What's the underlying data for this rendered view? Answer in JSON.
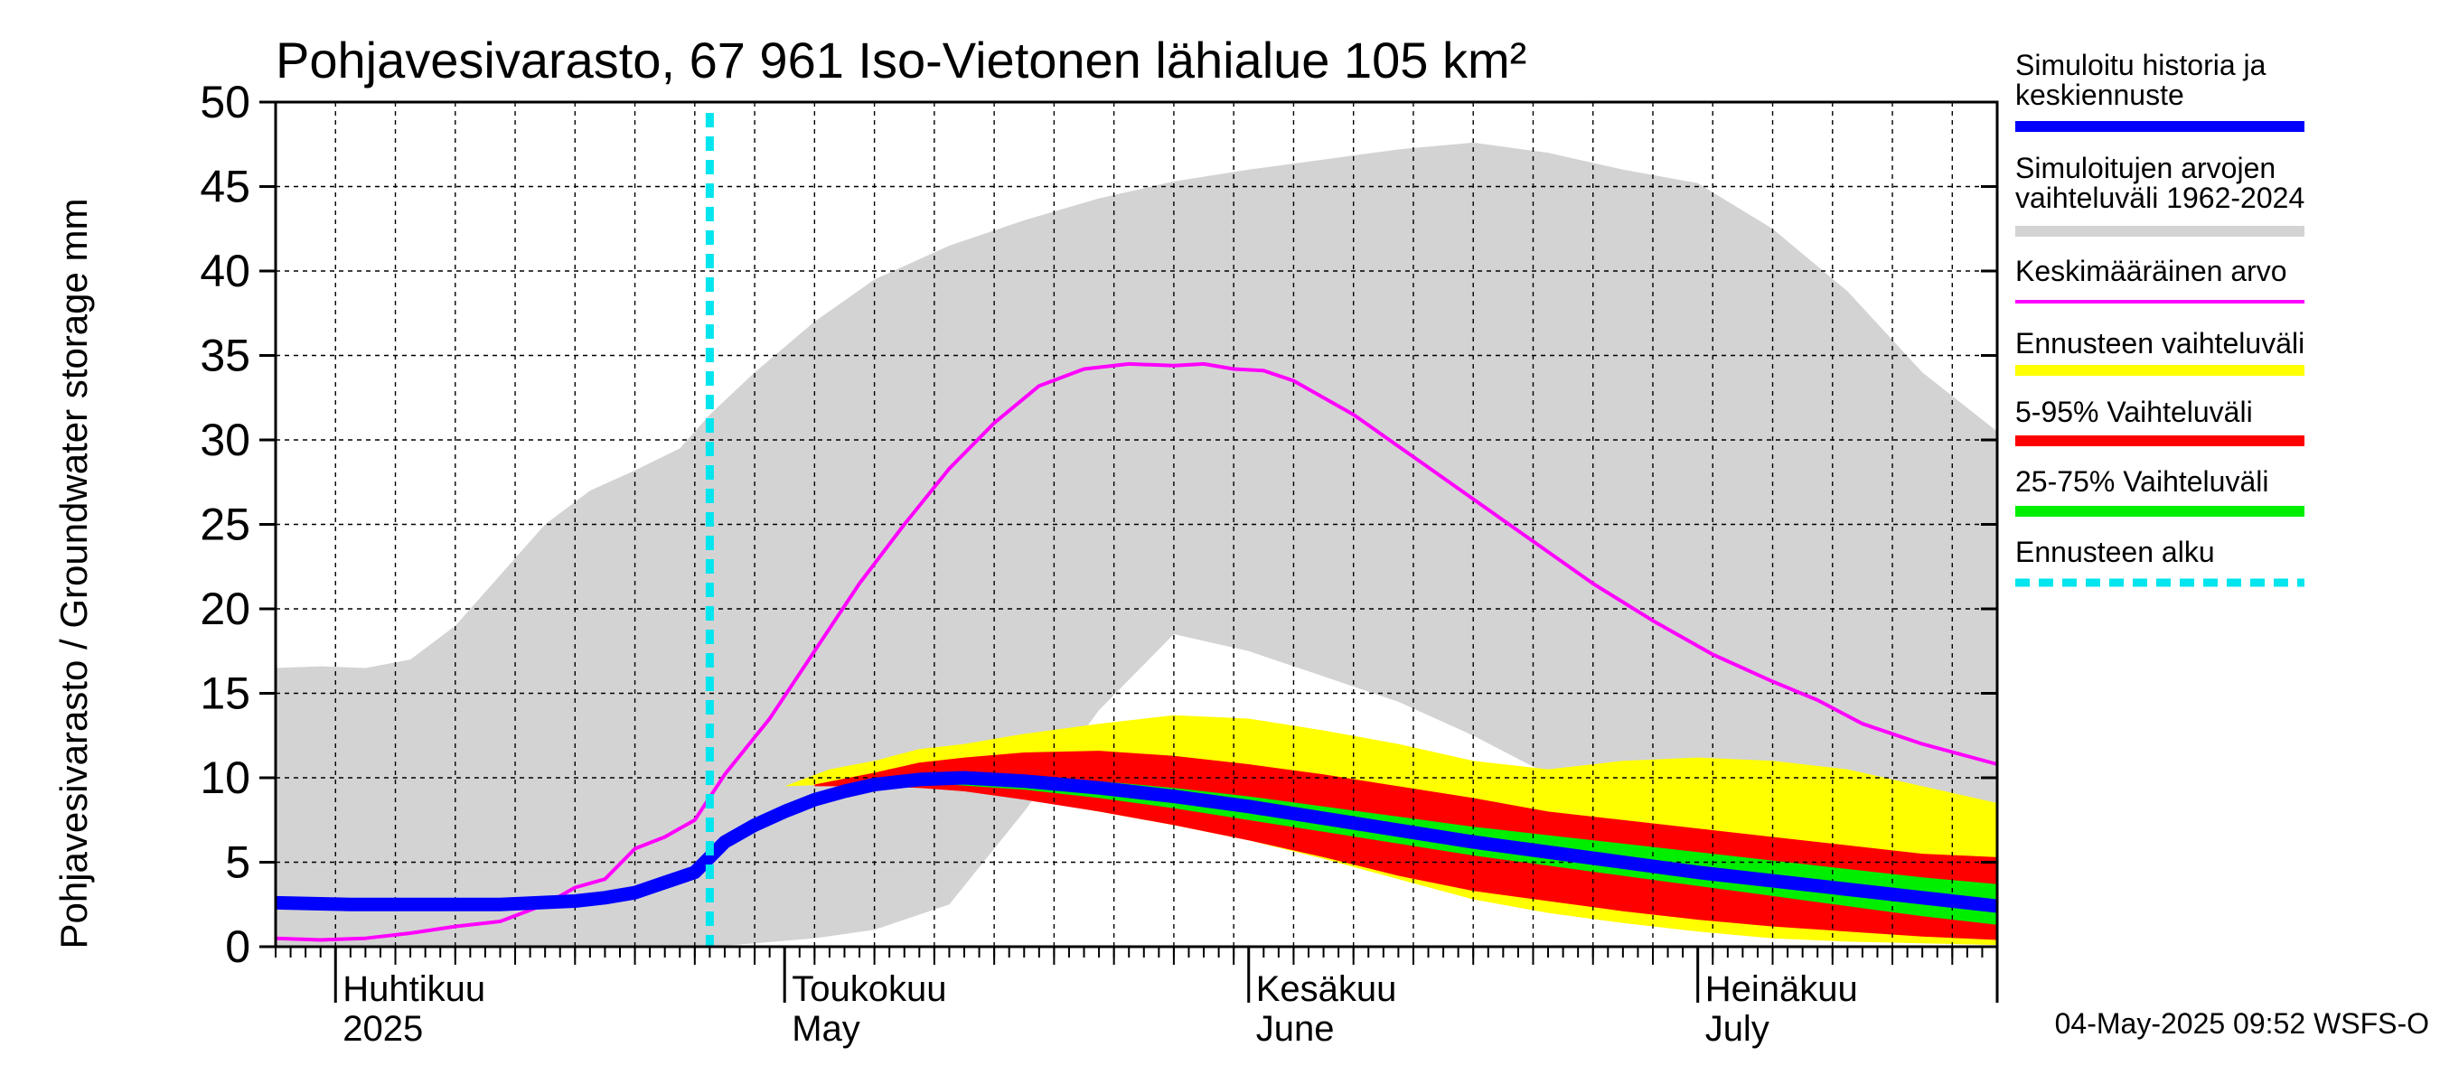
{
  "chart_data": {
    "type": "area",
    "title": "Pohjavesivarasto, 67 961 Iso-Vietonen lähialue 105 km²",
    "ylabel": "Pohjavesivarasto / Groundwater storage   mm",
    "xlabel": "",
    "ylim": [
      0,
      50
    ],
    "xlim": [
      0,
      115
    ],
    "x_origin": "2025-03-28",
    "grid": true,
    "y_ticks": [
      "0",
      "5",
      "10",
      "15",
      "20",
      "25",
      "30",
      "35",
      "40",
      "45",
      "50"
    ],
    "month_labels": [
      {
        "day": 4,
        "line1": "Huhtikuu",
        "line2": "2025"
      },
      {
        "day": 34,
        "line1": "Toukokuu",
        "line2": "May"
      },
      {
        "day": 65,
        "line1": "Kesäkuu",
        "line2": "June"
      },
      {
        "day": 95,
        "line1": "Heinäkuu",
        "line2": "July"
      }
    ],
    "month_boundaries": [
      4,
      34,
      65,
      95
    ],
    "forecast_start_day": 29,
    "series": [
      {
        "name": "Simuloitujen arvojen vaihteluväli 1962-2024",
        "kind": "band",
        "color": "#d3d3d3",
        "x": [
          0,
          3,
          6,
          9,
          12,
          15,
          18,
          21,
          24,
          27,
          29,
          32,
          36,
          40,
          45,
          50,
          55,
          60,
          65,
          70,
          75,
          80,
          85,
          90,
          95,
          100,
          105,
          110,
          115
        ],
        "upper": [
          16.5,
          16.6,
          16.5,
          17.0,
          19.0,
          22.0,
          25.0,
          27.0,
          28.2,
          29.5,
          31.5,
          34.0,
          37.0,
          39.5,
          41.5,
          43.0,
          44.3,
          45.3,
          46.0,
          46.6,
          47.2,
          47.6,
          47.0,
          46.0,
          45.2,
          42.5,
          38.8,
          34.0,
          30.5
        ],
        "lower": [
          0,
          0,
          0,
          0,
          0,
          0,
          0,
          0,
          0,
          0,
          0,
          0.2,
          0.5,
          1.0,
          2.5,
          8.0,
          14.0,
          18.5,
          17.5,
          16.0,
          14.5,
          12.5,
          10.2,
          8.3,
          6.8,
          5.8,
          4.9,
          4.0,
          3.5
        ]
      },
      {
        "name": "Ennusteen vaihteluväli",
        "kind": "band",
        "color": "#ffff00",
        "x": [
          34,
          37,
          40,
          43,
          46,
          50,
          55,
          60,
          65,
          70,
          75,
          80,
          85,
          90,
          95,
          100,
          105,
          110,
          115
        ],
        "upper": [
          9.5,
          10.5,
          11.0,
          11.7,
          12.0,
          12.6,
          13.2,
          13.7,
          13.5,
          12.8,
          12.0,
          11.0,
          10.5,
          11.0,
          11.2,
          11.0,
          10.5,
          9.5,
          8.5
        ],
        "lower": [
          9.5,
          9.6,
          9.7,
          9.5,
          9.3,
          8.8,
          8.0,
          7.2,
          6.3,
          5.2,
          4.0,
          2.8,
          2.0,
          1.4,
          0.9,
          0.5,
          0.3,
          0.2,
          0.1
        ]
      },
      {
        "name": "5-95% Vaihteluväli",
        "kind": "band",
        "color": "#ff0000",
        "x": [
          36,
          40,
          43,
          46,
          50,
          55,
          60,
          65,
          70,
          75,
          80,
          85,
          90,
          95,
          100,
          105,
          110,
          115
        ],
        "upper": [
          9.6,
          10.3,
          10.9,
          11.2,
          11.5,
          11.6,
          11.3,
          10.8,
          10.2,
          9.5,
          8.8,
          8.0,
          7.5,
          7.0,
          6.5,
          6.0,
          5.5,
          5.3
        ],
        "lower": [
          9.5,
          9.5,
          9.4,
          9.2,
          8.7,
          8.0,
          7.2,
          6.3,
          5.3,
          4.2,
          3.3,
          2.7,
          2.1,
          1.6,
          1.2,
          0.9,
          0.6,
          0.4
        ]
      },
      {
        "name": "25-75% Vaihteluväli",
        "kind": "band",
        "color": "#00ee00",
        "x": [
          40,
          45,
          50,
          55,
          60,
          65,
          70,
          75,
          80,
          85,
          90,
          95,
          100,
          105,
          110,
          115
        ],
        "upper": [
          10.0,
          10.1,
          10.1,
          9.8,
          9.4,
          8.9,
          8.3,
          7.7,
          7.1,
          6.6,
          6.1,
          5.6,
          5.1,
          4.6,
          4.1,
          3.7
        ],
        "lower": [
          9.8,
          9.6,
          9.3,
          8.8,
          8.2,
          7.5,
          6.8,
          6.1,
          5.4,
          4.8,
          4.2,
          3.6,
          3.0,
          2.4,
          1.8,
          1.3
        ]
      },
      {
        "name": "Keskimääräinen arvo",
        "kind": "line",
        "color": "#ff00ff",
        "x": [
          0,
          3,
          6,
          9,
          12,
          15,
          18,
          20,
          22,
          24,
          26,
          28,
          30,
          33,
          36,
          39,
          42,
          45,
          48,
          51,
          54,
          57,
          60,
          62,
          64,
          66,
          68,
          70,
          72,
          76,
          80,
          84,
          88,
          92,
          96,
          100,
          103,
          106,
          110,
          115
        ],
        "y": [
          0.5,
          0.4,
          0.5,
          0.8,
          1.2,
          1.5,
          2.5,
          3.5,
          4.0,
          5.8,
          6.5,
          7.5,
          10.2,
          13.5,
          17.5,
          21.5,
          25.0,
          28.3,
          31.0,
          33.2,
          34.2,
          34.5,
          34.4,
          34.5,
          34.2,
          34.1,
          33.5,
          32.5,
          31.5,
          29.0,
          26.5,
          24.0,
          21.5,
          19.3,
          17.3,
          15.7,
          14.6,
          13.2,
          12.0,
          10.8
        ]
      },
      {
        "name": "Simuloitu historia ja keskiennuste",
        "kind": "line",
        "color": "#0000ff",
        "x": [
          0,
          5,
          10,
          15,
          20,
          22,
          24,
          26,
          28,
          30,
          32,
          34,
          36,
          38,
          40,
          43,
          46,
          50,
          55,
          60,
          65,
          70,
          75,
          80,
          85,
          90,
          95,
          100,
          105,
          110,
          115
        ],
        "y": [
          2.6,
          2.5,
          2.5,
          2.5,
          2.7,
          2.9,
          3.2,
          3.8,
          4.4,
          6.2,
          7.2,
          8.0,
          8.7,
          9.2,
          9.6,
          9.9,
          10.0,
          9.8,
          9.4,
          8.9,
          8.3,
          7.6,
          6.9,
          6.2,
          5.6,
          5.0,
          4.4,
          3.9,
          3.4,
          2.9,
          2.4
        ]
      },
      {
        "name": "Ennusteen alku",
        "kind": "vline",
        "color": "#00e5ee",
        "x": 29
      }
    ]
  },
  "legend": [
    {
      "line1": "Simuloitu historia ja",
      "line2": "keskiennuste",
      "color": "#0000ff",
      "style": "thick"
    },
    {
      "line1": "Simuloitujen arvojen",
      "line2": "vaihteluväli 1962-2024",
      "color": "#d3d3d3",
      "style": "thick"
    },
    {
      "line1": "Keskimääräinen arvo",
      "line2": "",
      "color": "#ff00ff",
      "style": "thin"
    },
    {
      "line1": "Ennusteen vaihteluväli",
      "line2": "",
      "color": "#ffff00",
      "style": "thick"
    },
    {
      "line1": "5-95% Vaihteluväli",
      "line2": "",
      "color": "#ff0000",
      "style": "thick"
    },
    {
      "line1": "25-75% Vaihteluväli",
      "line2": "",
      "color": "#00ee00",
      "style": "thick"
    },
    {
      "line1": "Ennusteen alku",
      "line2": "",
      "color": "#00e5ee",
      "style": "dashed"
    }
  ],
  "footer": "04-May-2025 09:52 WSFS-O"
}
